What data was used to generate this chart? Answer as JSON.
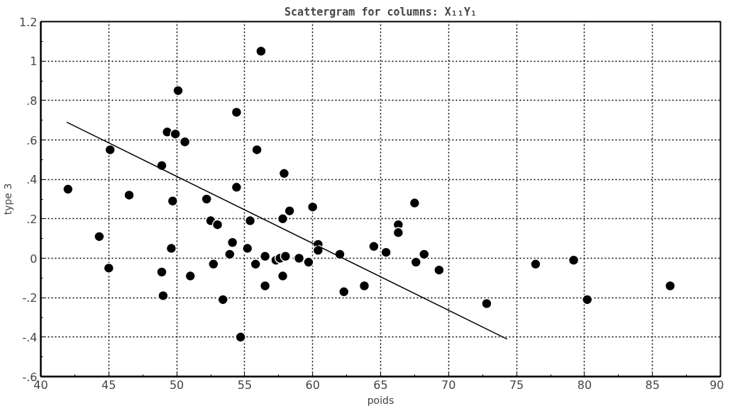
{
  "chart_data": {
    "type": "scatter",
    "title": "Scattergram for columns: X₁₁Y₁",
    "xlabel": "poids",
    "ylabel": "type 3",
    "xlim": [
      40,
      90
    ],
    "xticks": [
      40,
      45,
      50,
      55,
      60,
      65,
      70,
      75,
      80,
      85,
      90
    ],
    "ylim": [
      -0.6,
      1.2
    ],
    "yticks": [
      {
        "value": -0.6,
        "label": "-.6"
      },
      {
        "value": -0.4,
        "label": "-.4"
      },
      {
        "value": -0.2,
        "label": "-.2"
      },
      0,
      {
        "value": 0.2,
        "label": ".2"
      },
      {
        "value": 0.4,
        "label": ".4"
      },
      {
        "value": 0.6,
        "label": ".6"
      },
      {
        "value": 0.8,
        "label": ".8"
      },
      1,
      {
        "value": 1.2,
        "label": "1.2"
      }
    ],
    "grid": true,
    "series": [
      {
        "marker": "circle",
        "color": "#000000",
        "x": [
          42.0,
          44.3,
          45.1,
          45.0,
          46.5,
          48.9,
          48.9,
          49.0,
          49.3,
          49.7,
          49.6,
          49.9,
          50.1,
          50.6,
          51.0,
          52.2,
          52.5,
          53.0,
          52.7,
          53.4,
          53.9,
          54.1,
          54.4,
          54.4,
          54.7,
          55.2,
          55.4,
          55.9,
          55.8,
          56.2,
          56.5,
          56.5,
          57.3,
          57.6,
          57.8,
          57.8,
          58.0,
          57.9,
          58.3,
          59.0,
          59.7,
          60.0,
          60.4,
          60.4,
          62.0,
          62.3,
          63.8,
          64.5,
          65.4,
          66.3,
          66.3,
          67.5,
          67.6,
          68.2,
          69.3,
          72.8,
          76.4,
          79.2,
          80.2,
          86.3
        ],
        "values": [
          0.35,
          0.11,
          0.55,
          -0.05,
          0.32,
          0.47,
          -0.07,
          -0.19,
          0.64,
          0.29,
          0.05,
          0.63,
          0.85,
          0.59,
          -0.09,
          0.3,
          0.19,
          0.17,
          -0.03,
          -0.21,
          0.02,
          0.08,
          0.74,
          0.36,
          -0.4,
          0.05,
          0.19,
          0.55,
          -0.03,
          1.05,
          0.01,
          -0.14,
          -0.01,
          0.0,
          -0.09,
          0.2,
          0.01,
          0.43,
          0.24,
          0.0,
          -0.02,
          0.26,
          0.07,
          0.04,
          0.02,
          -0.17,
          -0.14,
          0.06,
          0.03,
          0.17,
          0.13,
          0.28,
          -0.02,
          0.02,
          -0.06,
          -0.23,
          -0.03,
          -0.01,
          -0.21,
          -0.14
        ]
      },
      {
        "type": "line",
        "marker": "none",
        "color": "#000000",
        "x": [
          41.9,
          74.3
        ],
        "values": [
          0.69,
          -0.41
        ]
      }
    ]
  }
}
